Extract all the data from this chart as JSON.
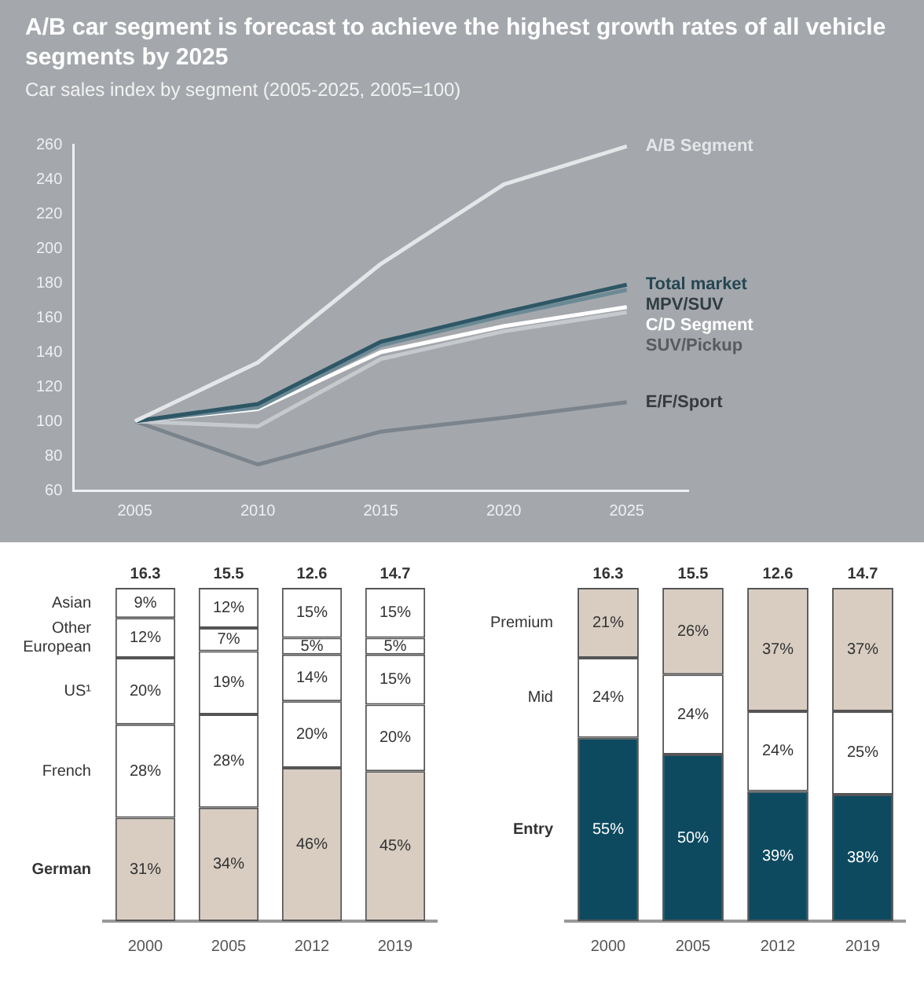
{
  "chart_data": [
    {
      "type": "line",
      "title": "A/B car segment is forecast to achieve the highest growth rates of all vehicle segments by 2025",
      "subtitle": "Car sales index by segment (2005-2025, 2005=100)",
      "x": [
        2005,
        2010,
        2015,
        2020,
        2025
      ],
      "series": [
        {
          "name": "A/B Segment",
          "color": "#e4e6e8",
          "values": [
            100,
            134,
            191,
            237,
            259
          ]
        },
        {
          "name": "Total market",
          "color": "#2e5766",
          "values": [
            100,
            110,
            146,
            163,
            179
          ]
        },
        {
          "name": "MPV/SUV",
          "color": "#6c8a96",
          "values": [
            100,
            108,
            144,
            161,
            176
          ]
        },
        {
          "name": "C/D Segment",
          "color": "#ffffff",
          "values": [
            100,
            107,
            140,
            155,
            166
          ]
        },
        {
          "name": "SUV/Pickup",
          "color": "#c6cace",
          "values": [
            100,
            97,
            136,
            152,
            163
          ]
        },
        {
          "name": "E/F/Sport",
          "color": "#7b848d",
          "values": [
            100,
            75,
            94,
            102,
            111
          ]
        }
      ],
      "xlim": [
        2002.5,
        2027.5
      ],
      "xticks": [
        2005,
        2010,
        2015,
        2020,
        2025
      ],
      "ylim": [
        60,
        260
      ],
      "yticks": [
        60,
        80,
        100,
        120,
        140,
        160,
        180,
        200,
        220,
        240,
        260
      ],
      "grid": false,
      "legend": false
    },
    {
      "type": "bar",
      "stacked": true,
      "categories": [
        "2000",
        "2005",
        "2012",
        "2019"
      ],
      "series": [
        {
          "name": "German",
          "color": "#d9cdc2",
          "values": [
            31,
            34,
            46,
            45
          ],
          "value_labels": [
            "31%",
            "34%",
            "46%",
            "45%"
          ]
        },
        {
          "name": "French",
          "color": "#ffffff",
          "values": [
            28,
            28,
            20,
            20
          ],
          "value_labels": [
            "28%",
            "28%",
            "20%",
            "20%"
          ]
        },
        {
          "name": "US¹",
          "color": "#ffffff",
          "values": [
            20,
            19,
            14,
            15
          ],
          "value_labels": [
            "20%",
            "19%",
            "14%",
            "15%"
          ]
        },
        {
          "name": "Other European",
          "color": "#ffffff",
          "values": [
            12,
            7,
            5,
            5
          ],
          "value_labels": [
            "12%",
            "7%",
            "5%",
            "5%"
          ]
        },
        {
          "name": "Asian",
          "color": "#ffffff",
          "values": [
            9,
            12,
            15,
            15
          ],
          "value_labels": [
            "9%",
            "12%",
            "15%",
            "15%"
          ]
        }
      ],
      "annotations": [
        "16.3",
        "15.5",
        "12.6",
        "14.7"
      ],
      "tick_labels": "x",
      "grid": false,
      "legend": false
    },
    {
      "type": "bar",
      "stacked": true,
      "categories": [
        "2000",
        "2005",
        "2012",
        "2019"
      ],
      "series": [
        {
          "name": "Entry",
          "color": "#0d4a60",
          "values": [
            55,
            50,
            39,
            38
          ],
          "value_labels": [
            "55%",
            "50%",
            "39%",
            "38%"
          ]
        },
        {
          "name": "Mid",
          "color": "#ffffff",
          "values": [
            24,
            24,
            24,
            25
          ],
          "value_labels": [
            "24%",
            "24%",
            "24%",
            "25%"
          ]
        },
        {
          "name": "Premium",
          "color": "#d9cdc2",
          "values": [
            21,
            26,
            37,
            37
          ],
          "value_labels": [
            "21%",
            "26%",
            "37%",
            "37%"
          ]
        }
      ],
      "annotations": [
        "16.3",
        "15.5",
        "12.6",
        "14.7"
      ],
      "tick_labels": "x",
      "grid": false,
      "legend": false
    }
  ]
}
